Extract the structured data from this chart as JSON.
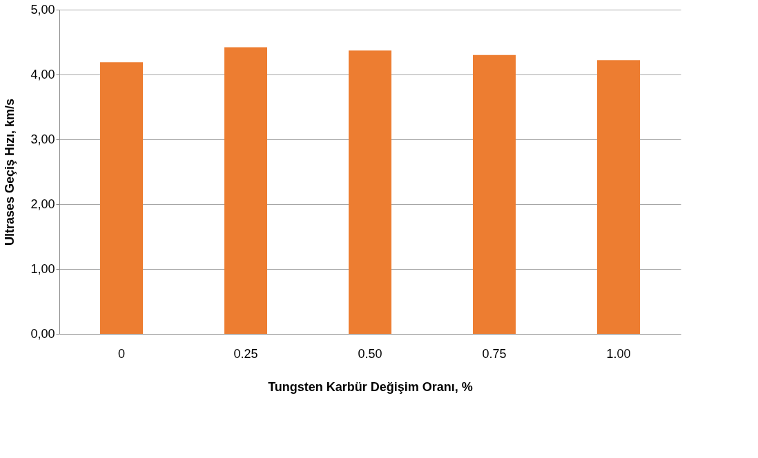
{
  "chart_data": {
    "type": "bar",
    "xlabel": "Tungsten Karbür Değişim Oranı, %",
    "ylabel": "Ultrases Geçiş Hızı, km/s",
    "categories": [
      "0",
      "0.25",
      "0.50",
      "0.75",
      "1.00"
    ],
    "values": [
      4.19,
      4.42,
      4.37,
      4.3,
      4.22
    ],
    "color": "#ed7d31",
    "ylim": [
      0,
      5
    ],
    "yticks": [
      {
        "value": 0,
        "label": "0,00"
      },
      {
        "value": 1,
        "label": "1,00"
      },
      {
        "value": 2,
        "label": "2,00"
      },
      {
        "value": 3,
        "label": "3,00"
      },
      {
        "value": 4,
        "label": "4,00"
      },
      {
        "value": 5,
        "label": "5,00"
      }
    ],
    "grid": "y"
  }
}
